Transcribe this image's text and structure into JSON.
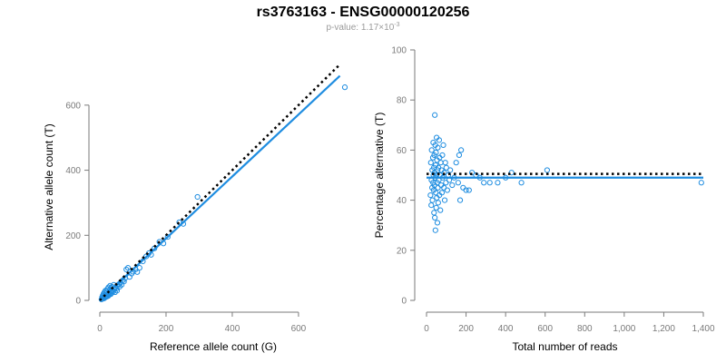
{
  "title": "rs3763163 - ENSG00000120256",
  "subtitle": {
    "prefix": "p-value: 1.17×10",
    "exponent": "-3"
  },
  "colors": {
    "point": "#1f8de0",
    "fit_line": "#1f8de0",
    "reference_line": "#000000",
    "axis": "#7a7a7a"
  },
  "chart_data": [
    {
      "type": "scatter",
      "title": "",
      "xlabel": "Reference allele count (G)",
      "ylabel": "Alternative allele count (T)",
      "xlim": [
        0,
        740
      ],
      "ylim": [
        0,
        700
      ],
      "xticks": [
        0,
        200,
        400,
        600
      ],
      "yticks": [
        0,
        200,
        400,
        600
      ],
      "xtick_labels": [
        "0",
        "200",
        "400",
        "600"
      ],
      "ytick_labels": [
        "0",
        "200",
        "400",
        "600"
      ],
      "grid": false,
      "reference_line": {
        "style": "dotted",
        "from": [
          0,
          0
        ],
        "to": [
          725,
          725
        ]
      },
      "fit_line": {
        "from": [
          0,
          0
        ],
        "to": [
          725,
          690
        ]
      },
      "points": [
        [
          5,
          3
        ],
        [
          7,
          10
        ],
        [
          8,
          5
        ],
        [
          9,
          15
        ],
        [
          10,
          8
        ],
        [
          11,
          20
        ],
        [
          12,
          12
        ],
        [
          13,
          6
        ],
        [
          14,
          25
        ],
        [
          15,
          18
        ],
        [
          16,
          9
        ],
        [
          17,
          30
        ],
        [
          18,
          14
        ],
        [
          19,
          22
        ],
        [
          20,
          11
        ],
        [
          21,
          28
        ],
        [
          22,
          16
        ],
        [
          23,
          35
        ],
        [
          24,
          20
        ],
        [
          25,
          13
        ],
        [
          26,
          40
        ],
        [
          27,
          24
        ],
        [
          28,
          17
        ],
        [
          29,
          32
        ],
        [
          30,
          21
        ],
        [
          31,
          45
        ],
        [
          32,
          26
        ],
        [
          33,
          19
        ],
        [
          34,
          38
        ],
        [
          35,
          29
        ],
        [
          36,
          23
        ],
        [
          37,
          42
        ],
        [
          38,
          31
        ],
        [
          40,
          27
        ],
        [
          42,
          48
        ],
        [
          44,
          34
        ],
        [
          46,
          25
        ],
        [
          48,
          40
        ],
        [
          50,
          36
        ],
        [
          52,
          30
        ],
        [
          55,
          45
        ],
        [
          58,
          50
        ],
        [
          60,
          42
        ],
        [
          63,
          55
        ],
        [
          66,
          48
        ],
        [
          70,
          62
        ],
        [
          73,
          58
        ],
        [
          76,
          68
        ],
        [
          80,
          95
        ],
        [
          85,
          100
        ],
        [
          90,
          72
        ],
        [
          96,
          82
        ],
        [
          100,
          88
        ],
        [
          108,
          95
        ],
        [
          113,
          87
        ],
        [
          120,
          100
        ],
        [
          130,
          120
        ],
        [
          140,
          135
        ],
        [
          148,
          145
        ],
        [
          155,
          140
        ],
        [
          165,
          160
        ],
        [
          180,
          180
        ],
        [
          192,
          175
        ],
        [
          205,
          195
        ],
        [
          240,
          240
        ],
        [
          252,
          235
        ],
        [
          295,
          318
        ],
        [
          740,
          655
        ]
      ]
    },
    {
      "type": "scatter",
      "title": "",
      "xlabel": "Total number of reads",
      "ylabel": "Percentage alternative (T)",
      "xlim": [
        0,
        1400
      ],
      "ylim": [
        0,
        100
      ],
      "xticks": [
        0,
        200,
        400,
        600,
        800,
        1000,
        1200,
        1400
      ],
      "yticks": [
        0,
        20,
        40,
        60,
        80,
        100
      ],
      "xtick_labels": [
        "0",
        "200",
        "400",
        "600",
        "800",
        "1,000",
        "1,200",
        "1,400"
      ],
      "ytick_labels": [
        "0",
        "20",
        "40",
        "60",
        "80",
        "100"
      ],
      "grid": false,
      "reference_line": {
        "style": "dotted",
        "y": 50.5
      },
      "fit_line": {
        "y": 49
      },
      "points": [
        [
          20,
          42
        ],
        [
          22,
          55
        ],
        [
          24,
          38
        ],
        [
          25,
          48
        ],
        [
          26,
          60
        ],
        [
          28,
          45
        ],
        [
          29,
          52
        ],
        [
          30,
          40
        ],
        [
          32,
          57
        ],
        [
          33,
          47
        ],
        [
          34,
          63
        ],
        [
          35,
          50
        ],
        [
          36,
          44
        ],
        [
          37,
          53
        ],
        [
          38,
          35
        ],
        [
          39,
          58
        ],
        [
          40,
          46
        ],
        [
          41,
          51
        ],
        [
          42,
          74
        ],
        [
          42,
          33
        ],
        [
          43,
          49
        ],
        [
          44,
          62
        ],
        [
          45,
          28
        ],
        [
          46,
          54
        ],
        [
          47,
          43
        ],
        [
          48,
          59
        ],
        [
          49,
          37
        ],
        [
          50,
          50
        ],
        [
          51,
          65
        ],
        [
          52,
          41
        ],
        [
          53,
          56
        ],
        [
          54,
          47
        ],
        [
          55,
          31
        ],
        [
          56,
          52
        ],
        [
          57,
          61
        ],
        [
          58,
          45
        ],
        [
          59,
          39
        ],
        [
          60,
          53
        ],
        [
          62,
          48
        ],
        [
          64,
          64
        ],
        [
          65,
          42
        ],
        [
          66,
          57
        ],
        [
          68,
          50
        ],
        [
          70,
          36
        ],
        [
          72,
          55
        ],
        [
          74,
          46
        ],
        [
          76,
          52
        ],
        [
          78,
          43
        ],
        [
          80,
          58
        ],
        [
          82,
          49
        ],
        [
          85,
          62
        ],
        [
          88,
          45
        ],
        [
          90,
          51
        ],
        [
          92,
          40
        ],
        [
          95,
          55
        ],
        [
          98,
          47
        ],
        [
          100,
          53
        ],
        [
          105,
          44
        ],
        [
          110,
          50
        ],
        [
          115,
          48
        ],
        [
          120,
          52
        ],
        [
          130,
          46
        ],
        [
          140,
          49
        ],
        [
          150,
          55
        ],
        [
          160,
          47
        ],
        [
          165,
          58
        ],
        [
          170,
          40
        ],
        [
          175,
          60
        ],
        [
          185,
          45
        ],
        [
          200,
          44
        ],
        [
          215,
          44
        ],
        [
          230,
          51
        ],
        [
          250,
          50
        ],
        [
          270,
          49
        ],
        [
          290,
          47
        ],
        [
          320,
          47
        ],
        [
          360,
          47
        ],
        [
          400,
          49
        ],
        [
          430,
          51
        ],
        [
          480,
          47
        ],
        [
          610,
          52
        ],
        [
          1390,
          47
        ]
      ]
    }
  ]
}
